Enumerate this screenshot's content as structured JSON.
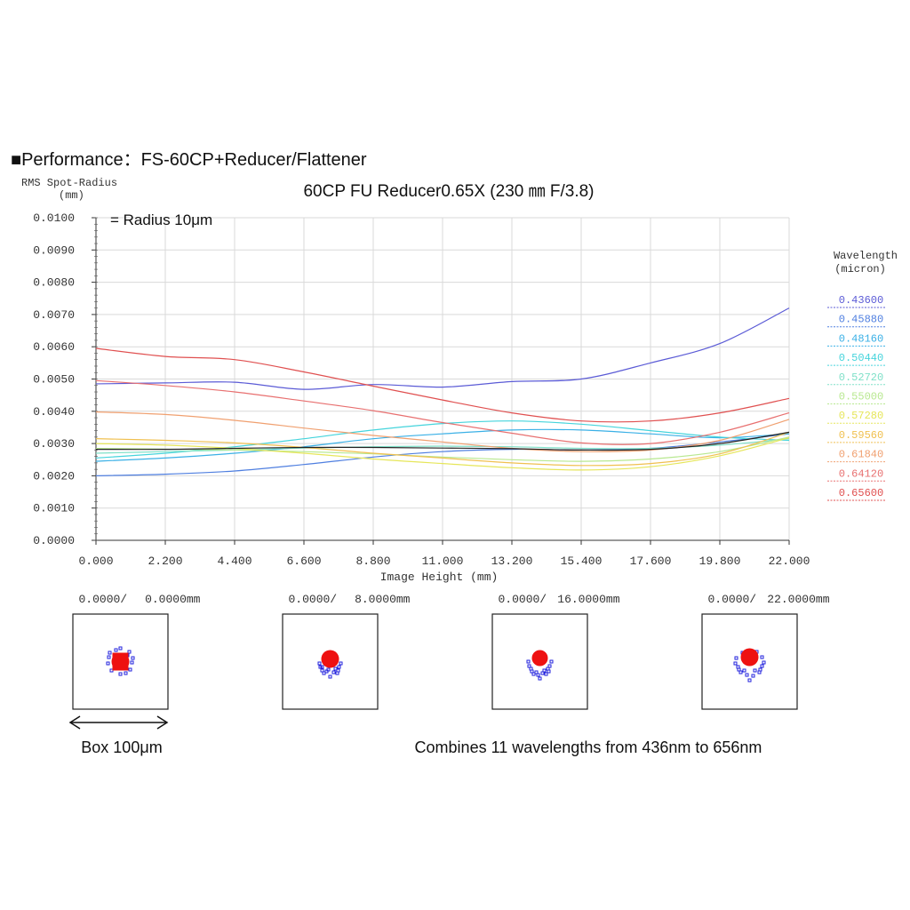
{
  "heading": {
    "bullet": "■",
    "text": "Performance：FS-60CP+Reducer/Flattener"
  },
  "chart_data": {
    "type": "line",
    "title": "60CP FU Reducer0.65X (230 ㎜ F/3.8)",
    "ylabel_line1": "RMS Spot-Radius",
    "ylabel_line2": "(mm)",
    "xlabel": "Image Height (mm)",
    "annotation": "= Radius 10μm",
    "xlim": [
      0,
      22
    ],
    "ylim": [
      0,
      0.01
    ],
    "grid": true,
    "x_ticks": [
      "0.000",
      "2.200",
      "4.400",
      "6.600",
      "8.800",
      "11.000",
      "13.200",
      "15.400",
      "17.600",
      "19.800",
      "22.000"
    ],
    "y_ticks": [
      "0.0000",
      "0.0010",
      "0.0020",
      "0.0030",
      "0.0040",
      "0.0050",
      "0.0060",
      "0.0070",
      "0.0080",
      "0.0090",
      "0.0100"
    ],
    "legend_title_line1": "Wavelength",
    "legend_title_line2": "(micron)",
    "legend_position": "right",
    "x": [
      0,
      2.2,
      4.4,
      6.6,
      8.8,
      11,
      13.2,
      15.4,
      17.6,
      19.8,
      22
    ],
    "series": [
      {
        "name": "0.43600",
        "color": "#5b5bd6",
        "values": [
          0.00485,
          0.00488,
          0.0049,
          0.00468,
          0.00483,
          0.00475,
          0.00492,
          0.005,
          0.0055,
          0.0061,
          0.0072
        ]
      },
      {
        "name": "0.45880",
        "color": "#4f7fe0",
        "values": [
          0.002,
          0.00205,
          0.00215,
          0.00235,
          0.00258,
          0.00275,
          0.00282,
          0.0028,
          0.00285,
          0.00305,
          0.0033
        ]
      },
      {
        "name": "0.48160",
        "color": "#3ab0e6",
        "values": [
          0.00245,
          0.00255,
          0.0027,
          0.0029,
          0.00315,
          0.0033,
          0.00342,
          0.00342,
          0.0033,
          0.00318,
          0.0033
        ]
      },
      {
        "name": "0.50440",
        "color": "#45d4dc",
        "values": [
          0.00255,
          0.0027,
          0.0029,
          0.00315,
          0.00342,
          0.00362,
          0.0037,
          0.0036,
          0.0034,
          0.0032,
          0.0031
        ]
      },
      {
        "name": "0.52720",
        "color": "#7fe0c8",
        "values": [
          0.0027,
          0.00275,
          0.0028,
          0.00286,
          0.0029,
          0.00292,
          0.0029,
          0.00285,
          0.00285,
          0.00295,
          0.00315
        ]
      },
      {
        "name": "0.55000",
        "color": "#b8e890",
        "values": [
          0.00285,
          0.00283,
          0.0028,
          0.00275,
          0.00268,
          0.00258,
          0.0025,
          0.00245,
          0.00252,
          0.00275,
          0.0032
        ]
      },
      {
        "name": "0.57280",
        "color": "#e6e65a",
        "values": [
          0.003,
          0.00295,
          0.00285,
          0.0027,
          0.00252,
          0.00238,
          0.00225,
          0.00218,
          0.00228,
          0.00262,
          0.00318
        ]
      },
      {
        "name": "0.59560",
        "color": "#f0c050",
        "values": [
          0.00315,
          0.0031,
          0.00302,
          0.00288,
          0.0027,
          0.00255,
          0.0024,
          0.00232,
          0.00238,
          0.00268,
          0.00335
        ]
      },
      {
        "name": "0.61840",
        "color": "#f0a070",
        "values": [
          0.00398,
          0.0039,
          0.00372,
          0.00348,
          0.00325,
          0.00305,
          0.00285,
          0.00275,
          0.0028,
          0.0031,
          0.00375
        ]
      },
      {
        "name": "0.64120",
        "color": "#e87070",
        "values": [
          0.00495,
          0.0048,
          0.0046,
          0.00432,
          0.00402,
          0.00365,
          0.00332,
          0.00302,
          0.003,
          0.00335,
          0.00395
        ]
      },
      {
        "name": "0.65600",
        "color": "#e05050",
        "values": [
          0.00595,
          0.0057,
          0.0056,
          0.00522,
          0.00478,
          0.00435,
          0.00395,
          0.0037,
          0.0037,
          0.00395,
          0.0044
        ]
      }
    ],
    "black_curve": {
      "color": "#222222",
      "values": [
        0.00282,
        0.00282,
        0.00285,
        0.00288,
        0.00288,
        0.00286,
        0.00284,
        0.0028,
        0.00282,
        0.003,
        0.00335
      ]
    }
  },
  "spot_diagrams": [
    {
      "label_left": "0.0000/",
      "label_right": "0.0000mm"
    },
    {
      "label_left": "0.0000/",
      "label_right": "8.0000mm"
    },
    {
      "label_left": "0.0000/",
      "label_right": "16.0000mm"
    },
    {
      "label_left": "0.0000/",
      "label_right": "22.0000mm"
    }
  ],
  "footer": {
    "box_label": "Box 100μm",
    "note": "Combines 11 wavelengths from 436nm to 656nm"
  },
  "colors": {
    "spot_red": "#ee1111",
    "spot_blue": "#2222dd",
    "grid": "#d9d9d9"
  }
}
